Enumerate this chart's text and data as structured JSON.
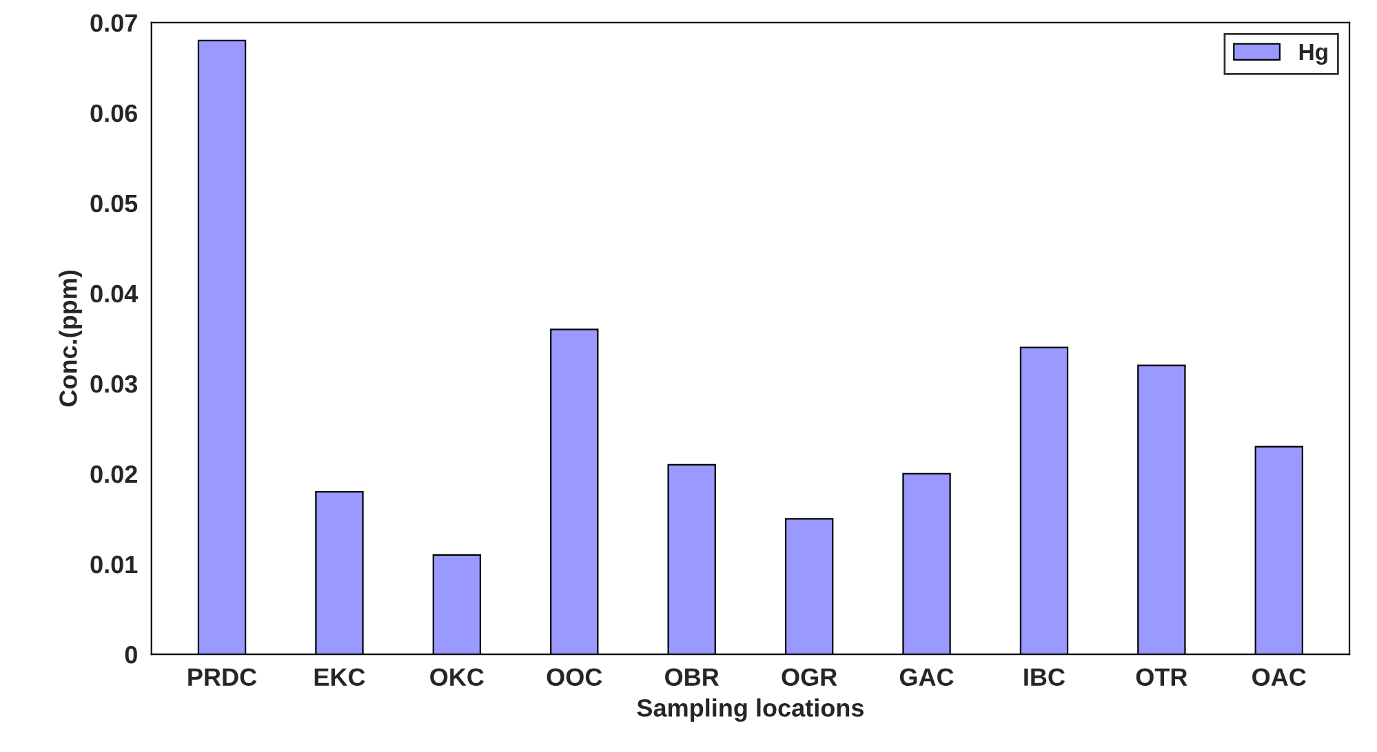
{
  "chart_data": {
    "type": "bar",
    "xlabel": "Sampling locations",
    "ylabel": "Conc.(ppm)",
    "categories": [
      "PRDC",
      "EKC",
      "OKC",
      "OOC",
      "OBR",
      "OGR",
      "GAC",
      "IBC",
      "OTR",
      "OAC"
    ],
    "series": [
      {
        "name": "Hg",
        "color": "#9999ff",
        "values": [
          0.068,
          0.018,
          0.011,
          0.036,
          0.021,
          0.015,
          0.02,
          0.034,
          0.032,
          0.023
        ]
      }
    ],
    "ylim": [
      0,
      0.07
    ],
    "yticks": [
      0,
      0.01,
      0.02,
      0.03,
      0.04,
      0.05,
      0.06,
      0.07
    ],
    "grid": false,
    "legend": "top right"
  }
}
